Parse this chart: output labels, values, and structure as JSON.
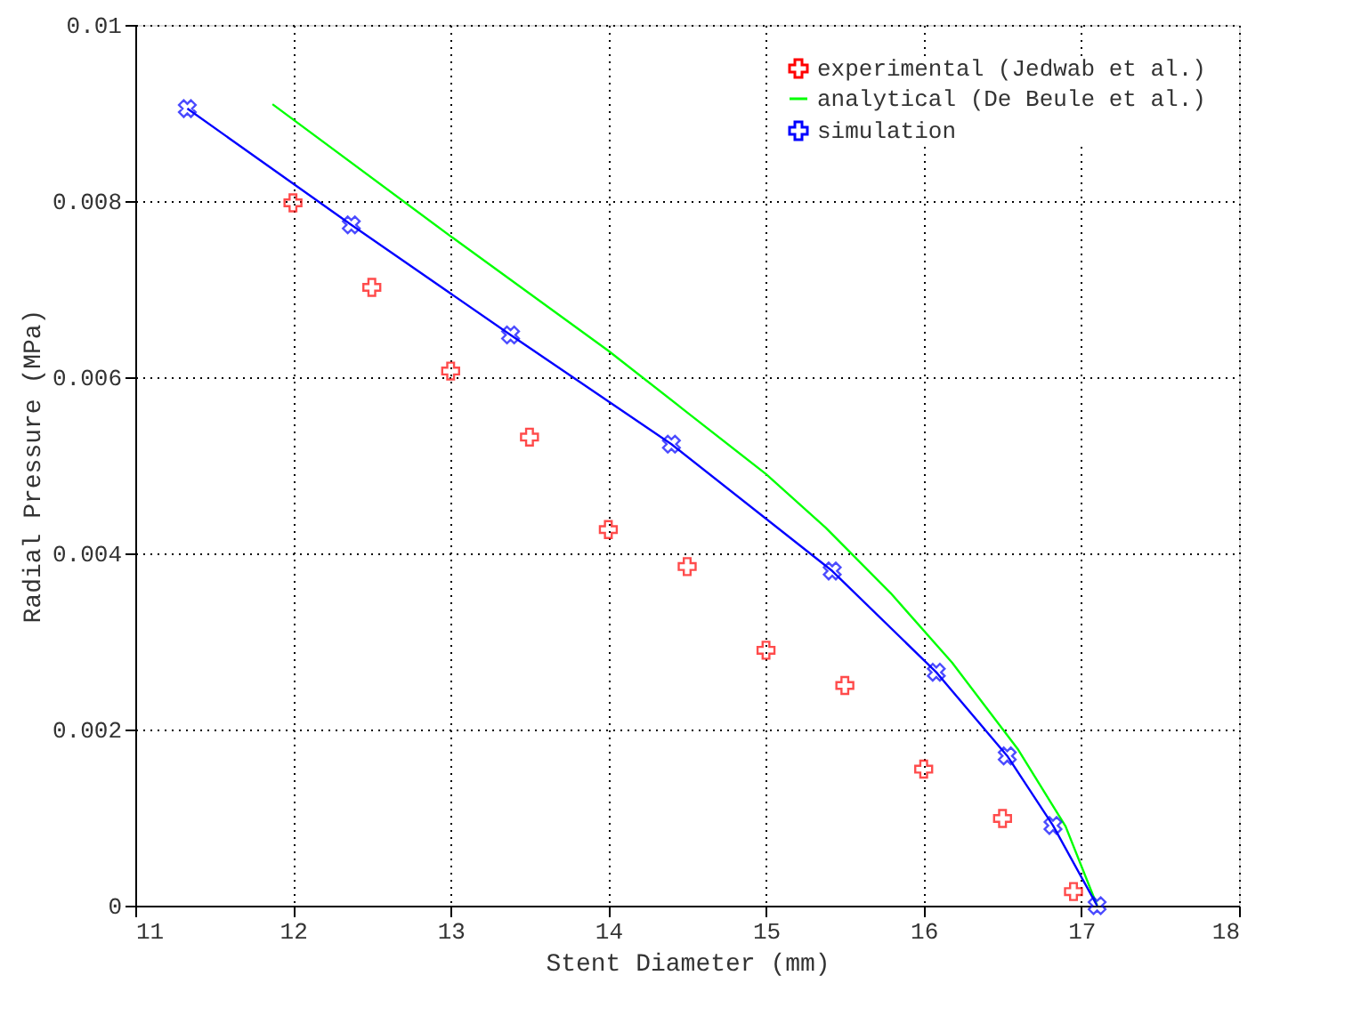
{
  "chart_data": {
    "type": "scatter",
    "xlabel": "Stent Diameter (mm)",
    "ylabel": "Radial Pressure (MPa)",
    "xlim": [
      11,
      18
    ],
    "xticks": [
      11,
      12,
      13,
      14,
      15,
      16,
      17,
      18
    ],
    "ylim": [
      0,
      0.01
    ],
    "yticks": [
      0,
      0.002,
      0.004,
      0.006,
      0.008,
      0.01
    ],
    "grid": true,
    "legend": "top right",
    "series": [
      {
        "name": "experimental (Jedwab et al.)",
        "marker": "cross",
        "color": "#ff0000",
        "x": [
          12,
          12.5,
          13,
          13.5,
          14,
          14.5,
          15,
          15.5,
          16,
          16.5,
          16.95
        ],
        "values": [
          0.00798,
          0.00702,
          0.00607,
          0.00532,
          0.00427,
          0.00385,
          0.0029,
          0.0025,
          0.00155,
          0.00099,
          0.00016
        ]
      },
      {
        "name": "analytical (De Beule et al.)",
        "type": "line",
        "marker": "none",
        "color": "#00ff00",
        "x": [
          11.87,
          13,
          14,
          14.5,
          15,
          15.38,
          15.79,
          16.18,
          16.6,
          16.9,
          17.1
        ],
        "values": [
          0.0091,
          0.0076,
          0.0063,
          0.0056,
          0.0049,
          0.00429,
          0.00355,
          0.00276,
          0.00177,
          0.0009,
          0
        ]
      },
      {
        "name": "simulation",
        "type": "line",
        "marker": "cross",
        "color": "#0000ff",
        "x": [
          11.33,
          12.37,
          13.38,
          14.4,
          15.42,
          16.08,
          16.53,
          16.82,
          17.1
        ],
        "values": [
          0.00905,
          0.00773,
          0.00648,
          0.00524,
          0.0038,
          0.00265,
          0.0017,
          0.00091,
          0
        ]
      }
    ]
  }
}
